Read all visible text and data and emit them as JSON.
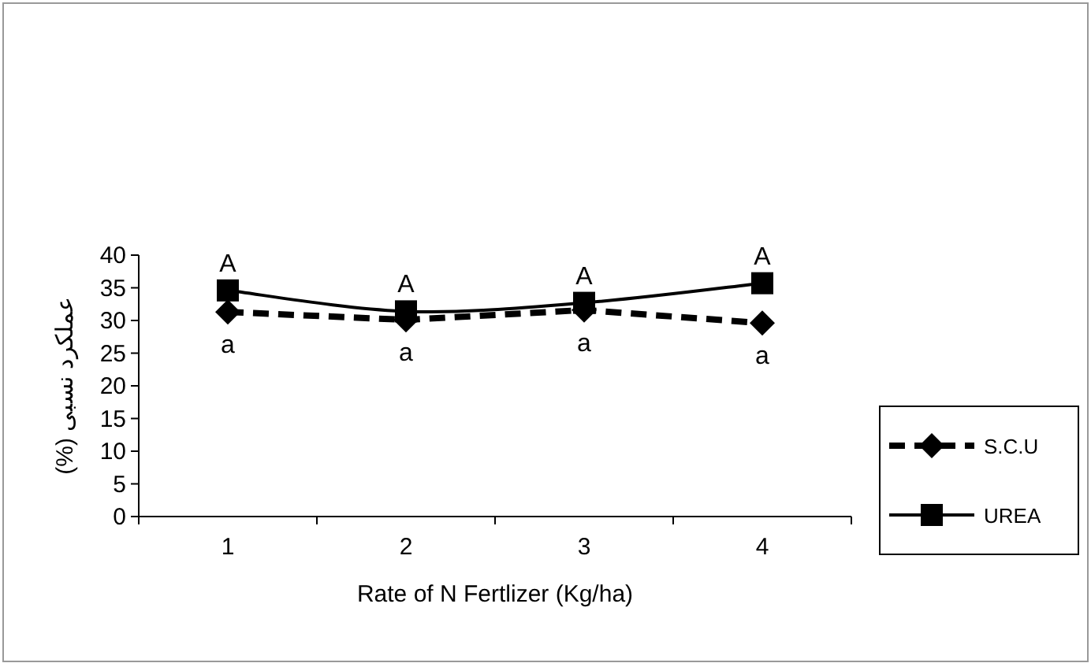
{
  "chart_data": {
    "type": "line",
    "xlabel": "Rate of N Fertlizer  (Kg/ha)",
    "ylabel": "عملکرد نسبی (%)",
    "categories": [
      "1",
      "2",
      "3",
      "4"
    ],
    "series": [
      {
        "name": "S.C.U",
        "color": "#000000",
        "values": [
          31.3,
          30.1,
          31.6,
          29.6
        ],
        "marker": "diamond",
        "line_style": "dashed"
      },
      {
        "name": "UREA",
        "color": "#000000",
        "values": [
          34.6,
          31.4,
          32.7,
          35.7
        ],
        "marker": "square",
        "line_style": "solid"
      }
    ],
    "ylim": [
      0,
      40
    ],
    "yticks": [
      0,
      5,
      10,
      15,
      20,
      25,
      30,
      35,
      40
    ],
    "grid": false,
    "legend": "right",
    "annotations": [
      {
        "text": "A",
        "x": "1",
        "y": 34.6
      },
      {
        "text": "A",
        "x": "2",
        "y": 31.4
      },
      {
        "text": "A",
        "x": "3",
        "y": 32.7
      },
      {
        "text": "A",
        "x": "4",
        "y": 35.7
      },
      {
        "text": "a",
        "x": "1",
        "y": 31.3
      },
      {
        "text": "a",
        "x": "2",
        "y": 30.1
      },
      {
        "text": "a",
        "x": "3",
        "y": 31.6
      },
      {
        "text": "a",
        "x": "4",
        "y": 29.6
      }
    ]
  }
}
